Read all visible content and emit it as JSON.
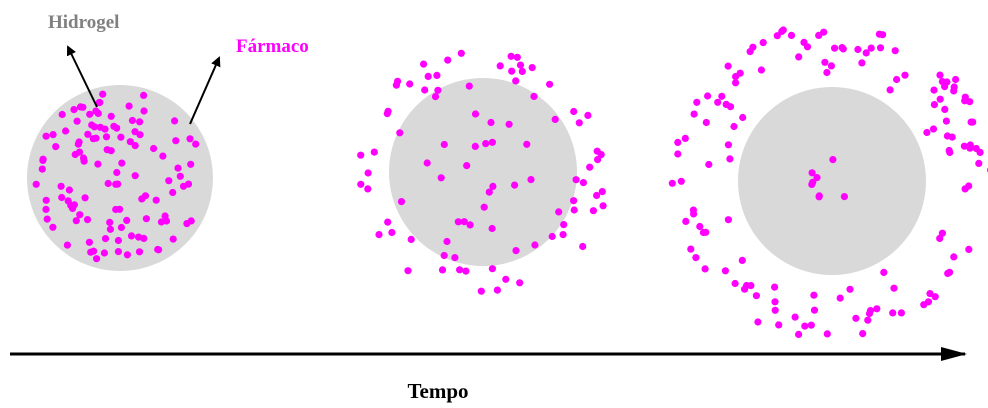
{
  "labels": {
    "hydrogel": "Hidrogel",
    "drug": "Fármaco",
    "time": "Tempo"
  }
}
